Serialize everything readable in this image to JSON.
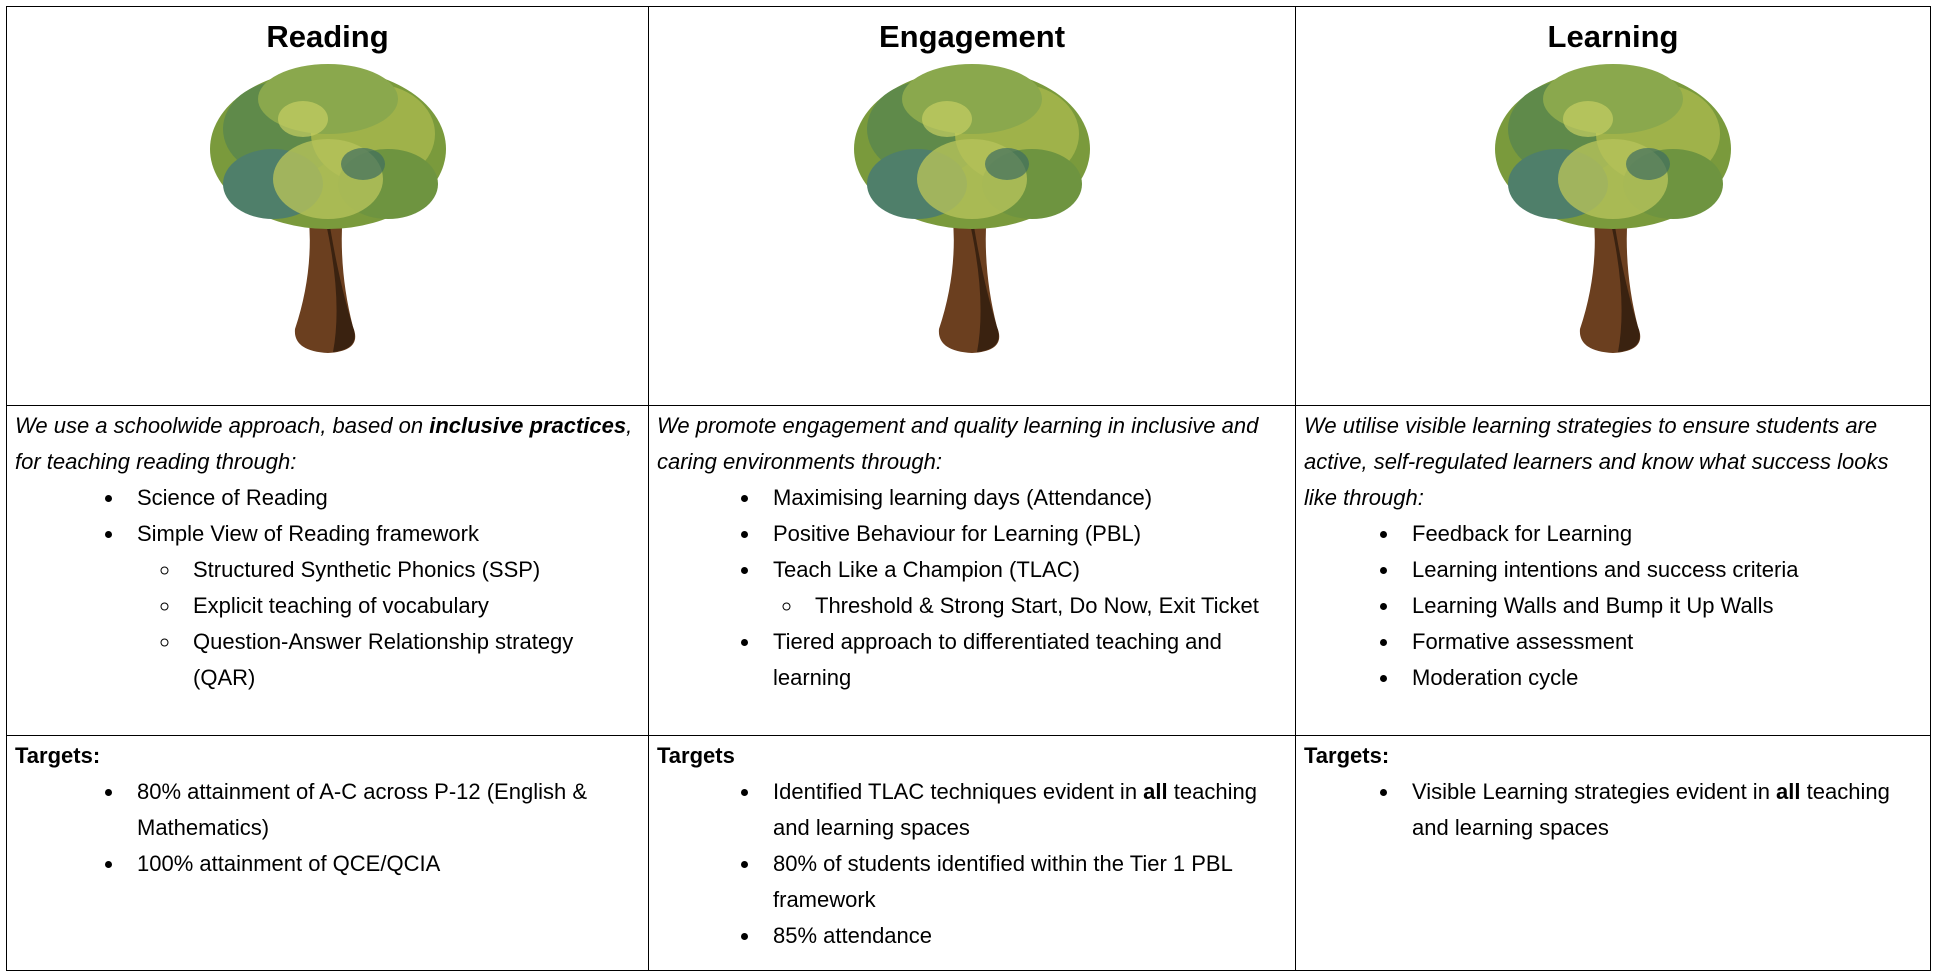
{
  "columns": [
    {
      "heading": "Reading",
      "intro": [
        "We use a schoolwide approach, based on ",
        "inclusive practices",
        ", for teaching reading through:"
      ],
      "items": [
        "Science of Reading",
        "Simple View of Reading framework"
      ],
      "subitems": [
        "Structured Synthetic Phonics (SSP)",
        "Explicit teaching of vocabulary",
        "Question-Answer Relationship strategy (QAR)"
      ],
      "targets_label": "Targets:",
      "targets": [
        [
          "80% attainment of A-C across P-12 (English & Mathematics)"
        ],
        [
          "100% attainment of QCE/QCIA"
        ]
      ]
    },
    {
      "heading": "Engagement",
      "intro": [
        "We promote engagement and quality learning in inclusive and caring environments through:"
      ],
      "items": [
        "Maximising learning days (Attendance)",
        "Positive Behaviour for Learning (PBL)",
        "Teach Like a Champion (TLAC)",
        "Tiered approach to differentiated teaching and learning"
      ],
      "subitems": [
        "Threshold & Strong Start, Do Now, Exit Ticket"
      ],
      "targets_label": "Targets",
      "targets": [
        [
          "Identified TLAC techniques evident in ",
          "all",
          " teaching and learning spaces"
        ],
        [
          "80% of students identified within the Tier 1 PBL framework"
        ],
        [
          "85% attendance"
        ]
      ]
    },
    {
      "heading": "Learning",
      "intro": [
        "We utilise visible learning strategies to ensure students are active, self-regulated learners and know what success looks like through:"
      ],
      "items": [
        "Feedback for Learning",
        "Learning intentions and success criteria",
        "Learning Walls and Bump it Up Walls",
        "Formative assessment",
        "Moderation cycle"
      ],
      "subitems": [],
      "targets_label": "Targets:",
      "targets": [
        [
          "Visible Learning strategies evident in ",
          "all",
          " teaching and learning spaces"
        ]
      ]
    }
  ]
}
